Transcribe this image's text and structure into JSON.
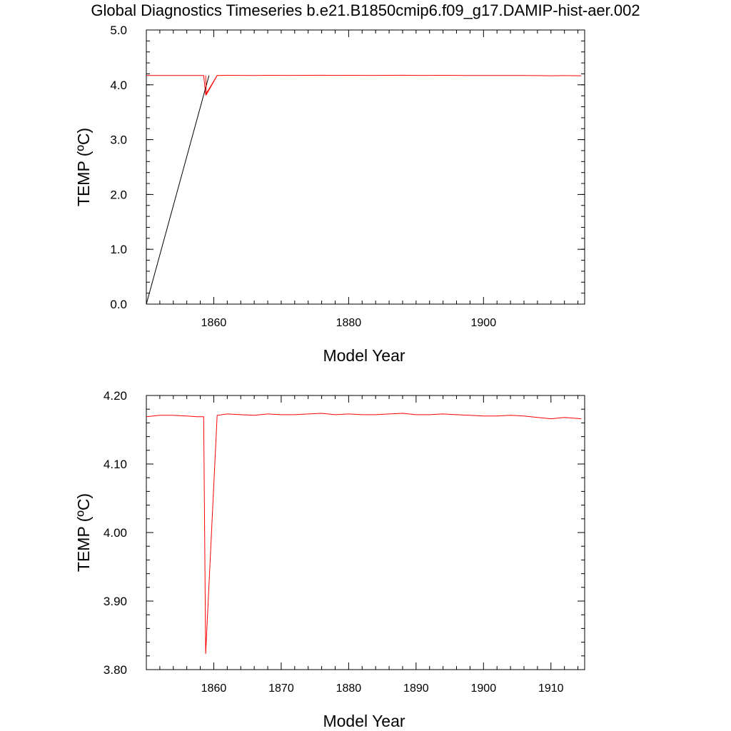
{
  "page": {
    "title": "Global Diagnostics Timeseries b.e21.B1850cmip6.f09_g17.DAMIP-hist-aer.002"
  },
  "colors": {
    "primary_series": "#ff0000",
    "secondary_series": "#000000"
  },
  "chart_data": [
    {
      "type": "line",
      "xlabel": "Model Year",
      "ylabel": "TEMP (ºC)",
      "xlim": [
        1850,
        1915
      ],
      "ylim": [
        0.0,
        5.0
      ],
      "xticks": [
        1860,
        1880,
        1900
      ],
      "xtick_labels": [
        "1860",
        "1880",
        "1900"
      ],
      "yticks": [
        0.0,
        1.0,
        2.0,
        3.0,
        4.0,
        5.0
      ],
      "ytick_labels": [
        "0.0",
        "1.0",
        "2.0",
        "3.0",
        "4.0",
        "5.0"
      ],
      "series": [
        {
          "color": "#ff0000",
          "x": [
            1850,
            1852,
            1854,
            1856,
            1857.5,
            1858.5,
            1858.8,
            1860.5,
            1862,
            1864,
            1866,
            1868,
            1870,
            1872,
            1874,
            1876,
            1878,
            1880,
            1882,
            1884,
            1886,
            1888,
            1890,
            1892,
            1894,
            1896,
            1898,
            1900,
            1902,
            1904,
            1906,
            1908,
            1910,
            1912,
            1914.5
          ],
          "y": [
            4.169,
            4.171,
            4.171,
            4.17,
            4.169,
            4.169,
            3.823,
            4.171,
            4.173,
            4.172,
            4.171,
            4.173,
            4.172,
            4.172,
            4.173,
            4.174,
            4.172,
            4.173,
            4.172,
            4.172,
            4.173,
            4.174,
            4.172,
            4.172,
            4.173,
            4.172,
            4.171,
            4.17,
            4.17,
            4.171,
            4.17,
            4.168,
            4.166,
            4.168,
            4.166
          ]
        },
        {
          "color": "#000000",
          "x": [
            1850,
            1859.3
          ],
          "y": [
            0.0,
            4.17
          ]
        },
        {
          "color": "#ff0000",
          "x": [
            1858.8,
            1858.9,
            1860.5
          ],
          "y": [
            4.17,
            3.82,
            4.17
          ]
        }
      ]
    },
    {
      "type": "line",
      "xlabel": "Model Year",
      "ylabel": "TEMP (ºC)",
      "xlim": [
        1850,
        1915
      ],
      "ylim": [
        3.8,
        4.2
      ],
      "xticks": [
        1860,
        1870,
        1880,
        1890,
        1900,
        1910
      ],
      "xtick_labels": [
        "1860",
        "1870",
        "1880",
        "1890",
        "1900",
        "1910"
      ],
      "yticks": [
        3.8,
        3.9,
        4.0,
        4.1,
        4.2
      ],
      "ytick_labels": [
        "3.80",
        "3.90",
        "4.00",
        "4.10",
        "4.20"
      ],
      "series": [
        {
          "color": "#ff0000",
          "x": [
            1850,
            1852,
            1854,
            1856,
            1857.5,
            1858.5,
            1858.8,
            1860.5,
            1862,
            1864,
            1866,
            1868,
            1870,
            1872,
            1874,
            1876,
            1878,
            1880,
            1882,
            1884,
            1886,
            1888,
            1890,
            1892,
            1894,
            1896,
            1898,
            1900,
            1902,
            1904,
            1906,
            1908,
            1910,
            1912,
            1914.5
          ],
          "y": [
            4.169,
            4.171,
            4.171,
            4.17,
            4.169,
            4.169,
            3.823,
            4.171,
            4.173,
            4.172,
            4.171,
            4.173,
            4.172,
            4.172,
            4.173,
            4.174,
            4.172,
            4.173,
            4.172,
            4.172,
            4.173,
            4.174,
            4.172,
            4.172,
            4.173,
            4.172,
            4.171,
            4.17,
            4.17,
            4.171,
            4.17,
            4.168,
            4.166,
            4.168,
            4.166
          ]
        }
      ]
    }
  ]
}
